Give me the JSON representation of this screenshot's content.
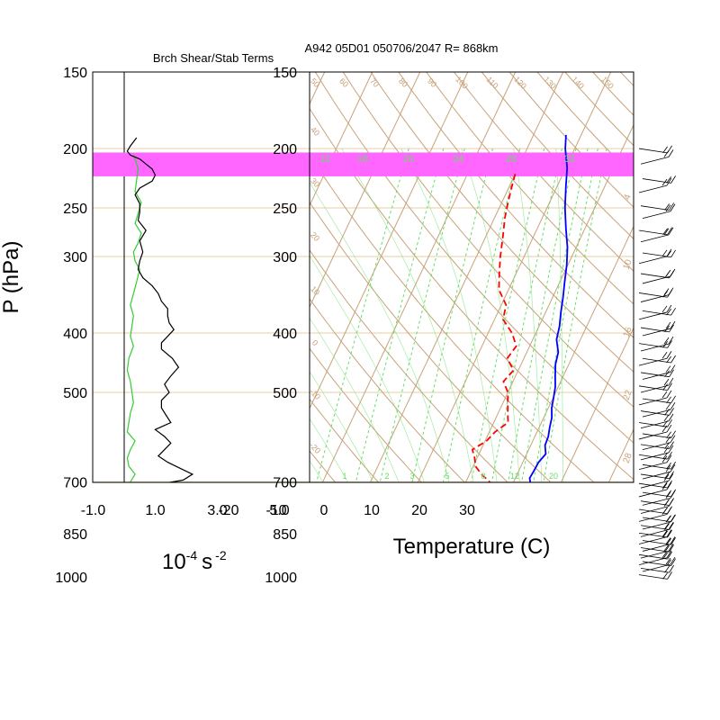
{
  "header": {
    "left_title": "Brch Shear/Stab Terms",
    "right_title": "A942 05D01 050706/2047 R= 868km"
  },
  "colors": {
    "isobar_grid": "#e8cfa6",
    "isotherm_adiabat": "#c8a27a",
    "mixing_ratio": "#66dd66",
    "highlight_band": "#ff66ff",
    "temperature": "#0000ff",
    "dewpoint": "#ff0000",
    "stability_curve": "#000000",
    "shear_curve": "#33cc33",
    "wind_barb": "#000000"
  },
  "chart_data": [
    {
      "type": "line",
      "panel": "shear-stability",
      "title": "Brch Shear/Stab Terms",
      "ylabel": "P (hPa)",
      "xlabel_base": "10",
      "xlabel_exp1": "-4",
      "xlabel_unit": "s",
      "xlabel_exp2": "-2",
      "xticks": [
        "-1.0",
        "1.0",
        "3.0",
        "5.0"
      ],
      "xlim": [
        -1.0,
        5.0
      ],
      "y_scale": "log",
      "ylim": [
        150,
        1050
      ],
      "yticks": [
        150,
        200,
        250,
        300,
        400,
        500,
        700,
        850,
        1000
      ],
      "ytick_labels": [
        "150",
        "200",
        "250",
        "300",
        "400",
        "500",
        "700",
        "850",
        "1000"
      ],
      "highlight_band_hpa": [
        203,
        222
      ],
      "series": [
        {
          "pressure": [
            192,
            198,
            202,
            205,
            208,
            212,
            216,
            221,
            226,
            232,
            238,
            246,
            254,
            262,
            272,
            283,
            295,
            305,
            315,
            325,
            335,
            345,
            355,
            365,
            375,
            385,
            395,
            405,
            415,
            425,
            440,
            455,
            470,
            485,
            500,
            515,
            530,
            545,
            560,
            575,
            590,
            605,
            620,
            635,
            650,
            665,
            680,
            695,
            705,
            720,
            735,
            750,
            765,
            780,
            795,
            810,
            825,
            840,
            855,
            870,
            890,
            910,
            930,
            950,
            970,
            990,
            1000
          ],
          "values": [
            0.4,
            0.2,
            0.1,
            0.2,
            0.5,
            0.7,
            0.9,
            1.0,
            0.9,
            0.5,
            0.35,
            0.5,
            0.5,
            0.45,
            0.7,
            0.5,
            0.6,
            0.5,
            0.45,
            0.6,
            0.9,
            1.1,
            1.2,
            1.4,
            1.4,
            1.45,
            1.6,
            1.4,
            1.2,
            1.2,
            1.55,
            1.75,
            1.5,
            1.3,
            1.45,
            1.2,
            1.2,
            1.35,
            1.5,
            1.0,
            1.3,
            1.5,
            1.3,
            1.1,
            1.4,
            1.8,
            2.2,
            1.9,
            1.2,
            1.0,
            1.2,
            1.3,
            1.1,
            1.0,
            1.3,
            1.6,
            1.9,
            1.5,
            1.2,
            1.1,
            0.8,
            0.5,
            0.5,
            0.4,
            0.2,
            0.0,
            0.0
          ]
        },
        {
          "pressure": [
            205,
            215,
            225,
            235,
            245,
            255,
            265,
            275,
            285,
            295,
            305,
            315,
            330,
            345,
            360,
            375,
            390,
            405,
            420,
            440,
            460,
            480,
            500,
            520,
            540,
            560,
            580,
            600,
            620,
            640,
            660,
            680,
            700,
            720,
            740,
            760,
            780,
            800,
            820,
            840,
            860,
            880,
            900,
            920,
            940,
            960,
            980,
            1000
          ],
          "values": [
            0.3,
            0.45,
            0.4,
            0.35,
            0.55,
            0.45,
            0.35,
            0.55,
            0.45,
            0.3,
            0.35,
            0.5,
            0.4,
            0.3,
            0.2,
            0.3,
            0.25,
            0.2,
            0.3,
            0.15,
            0.1,
            0.2,
            0.25,
            0.3,
            0.2,
            0.15,
            0.1,
            0.35,
            0.2,
            0.1,
            0.15,
            0.35,
            0.2,
            0.15,
            0.3,
            0.15,
            0.2,
            0.35,
            0.2,
            0.15,
            0.1,
            0.2,
            0.35,
            0.15,
            0.2,
            0.3,
            0.3,
            0.35
          ]
        }
      ]
    },
    {
      "type": "line",
      "panel": "skew-t",
      "title": "A942 05D01 050706/2047 R= 868km",
      "xlabel": "Temperature (C)",
      "xticks": [
        "-20",
        "-10",
        "0",
        "10",
        "20",
        "30"
      ],
      "y_scale": "log",
      "ylim": [
        150,
        1050
      ],
      "yticks": [
        150,
        200,
        250,
        300,
        400,
        500,
        700,
        850,
        1000
      ],
      "ytick_labels": [
        "150",
        "200",
        "250",
        "300",
        "400",
        "500",
        "700",
        "850",
        "1000"
      ],
      "highlight_band_hpa": [
        203,
        222
      ],
      "mixing_ratio_top_labels": [
        "12",
        "16",
        "20",
        "24",
        "28",
        "32"
      ],
      "mixing_ratio_bottom_labels": [
        "1",
        "2",
        "3",
        "5",
        "8",
        "12",
        "20"
      ],
      "adiabat_top_labels": [
        "50",
        "60",
        "70",
        "80",
        "90",
        "100",
        "110",
        "120",
        "130",
        "140",
        "150"
      ],
      "adiabat_side_labels": [
        "40",
        "30",
        "20",
        "10",
        "0",
        "-10",
        "-20"
      ],
      "right_side_labels": [
        "4",
        "10",
        "16",
        "22",
        "28"
      ],
      "series": [
        {
          "pressure": [
            190,
            200,
            215,
            230,
            250,
            270,
            290,
            310,
            330,
            350,
            370,
            390,
            410,
            430,
            450,
            470,
            490,
            510,
            530,
            550,
            570,
            590,
            610,
            630,
            650,
            670,
            690,
            710,
            730,
            750,
            770,
            790,
            810,
            830,
            850,
            870,
            900,
            930,
            960,
            990,
            1010
          ],
          "values": [
            -3.2,
            -2.0,
            0.3,
            1.8,
            3.8,
            6.0,
            8.2,
            9.8,
            11.0,
            12.2,
            13.2,
            14.3,
            15.0,
            16.6,
            17.2,
            18.3,
            19.4,
            20.1,
            20.7,
            21.7,
            22.2,
            22.8,
            23.0,
            24.0,
            23.3,
            23.2,
            23.0,
            24.0,
            25.0,
            25.6,
            26.3,
            27.0,
            27.5,
            26.3,
            26.8,
            28.2,
            28.8,
            29.8,
            30.3,
            31.0,
            31.5
          ]
        },
        {
          "pressure": [
            220,
            230,
            245,
            260,
            280,
            300,
            320,
            340,
            360,
            380,
            400,
            420,
            440,
            460,
            480,
            500,
            520,
            540,
            560,
            580,
            600,
            620,
            640,
            660,
            680,
            700,
            720,
            740,
            760,
            780,
            800,
            820,
            840,
            860,
            880,
            900,
            920,
            940,
            960,
            980,
            1000
          ],
          "values": [
            -10.0,
            -9.5,
            -8.7,
            -7.8,
            -6.3,
            -5.0,
            -3.5,
            -2.0,
            1.0,
            1.8,
            5.0,
            7.2,
            6.5,
            9.0,
            8.0,
            10.0,
            11.0,
            12.0,
            13.0,
            11.2,
            10.3,
            8.2,
            9.5,
            10.5,
            12.5,
            15.0,
            16.3,
            16.0,
            17.2,
            18.3,
            18.0,
            19.5,
            19.0,
            20.6,
            21.0,
            22.0,
            23.2,
            23.8,
            25.0,
            25.8,
            26.5
          ]
        }
      ]
    }
  ]
}
